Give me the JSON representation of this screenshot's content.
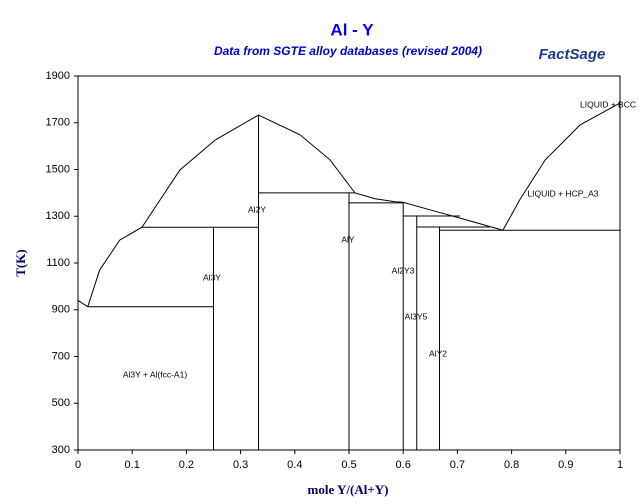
{
  "chart_data": {
    "type": "line",
    "title": "Al - Y",
    "subtitle": "Data from SGTE alloy databases (revised 2004)",
    "logo": "FactSage",
    "x_label": "mole Y/(Al+Y)",
    "y_label": "T(K)",
    "xlim": [
      0,
      1
    ],
    "ylim": [
      300,
      1900
    ],
    "xticks": [
      0,
      0.1,
      0.2,
      0.3,
      0.4,
      0.5,
      0.6,
      0.7,
      0.8,
      0.9,
      1
    ],
    "yticks": [
      300,
      500,
      700,
      900,
      1100,
      1300,
      1500,
      1700,
      1900
    ],
    "series": [
      {
        "color": "#000000",
        "x": [
          0,
          0.018
        ],
        "values": [
          940,
          913
        ]
      },
      {
        "color": "#000000",
        "x": [
          0.018,
          0.04,
          0.077,
          0.118,
          0.188,
          0.253,
          0.333,
          0.41,
          0.465,
          0.511,
          0.548,
          0.585,
          0.6,
          0.65,
          0.705,
          0.784
        ],
        "values": [
          913,
          1070,
          1198,
          1253,
          1498,
          1626,
          1733,
          1648,
          1541,
          1400,
          1375,
          1362,
          1360,
          1327,
          1292,
          1240
        ]
      },
      {
        "color": "#000000",
        "x": [
          0.784,
          0.815,
          0.862,
          0.926,
          1
        ],
        "values": [
          1240,
          1370,
          1541,
          1690,
          1784
        ]
      },
      {
        "color": "#000000",
        "x": [
          0.018,
          0.25
        ],
        "values": [
          913,
          913
        ]
      },
      {
        "color": "#000000",
        "x": [
          0.118,
          0.333
        ],
        "values": [
          1253,
          1253
        ]
      },
      {
        "color": "#000000",
        "x": [
          0.333,
          0.511
        ],
        "values": [
          1400,
          1400
        ]
      },
      {
        "color": "#000000",
        "x": [
          0.5,
          0.6
        ],
        "values": [
          1357,
          1357
        ]
      },
      {
        "color": "#000000",
        "x": [
          0.6,
          0.705
        ],
        "values": [
          1301,
          1301
        ]
      },
      {
        "color": "#000000",
        "x": [
          0.625,
          0.76
        ],
        "values": [
          1254,
          1254
        ]
      },
      {
        "color": "#000000",
        "x": [
          0.667,
          1
        ],
        "values": [
          1240,
          1240
        ]
      },
      {
        "color": "#000000",
        "x": [
          0.25,
          0.25
        ],
        "values": [
          300,
          1253
        ]
      },
      {
        "color": "#000000",
        "x": [
          0.333,
          0.333
        ],
        "values": [
          300,
          1733
        ]
      },
      {
        "color": "#000000",
        "x": [
          0.5,
          0.5
        ],
        "values": [
          300,
          1400
        ]
      },
      {
        "color": "#000000",
        "x": [
          0.6,
          0.6
        ],
        "values": [
          300,
          1357
        ]
      },
      {
        "color": "#000000",
        "x": [
          0.625,
          0.625
        ],
        "values": [
          300,
          1301
        ]
      },
      {
        "color": "#000000",
        "x": [
          0.667,
          0.667
        ],
        "values": [
          300,
          1254
        ]
      }
    ],
    "annotations": [
      "Al3Y + Al(fcc-A1)",
      "Al3Y",
      "Al2Y",
      "AlY",
      "Al2Y3",
      "Al3Y5",
      "AlY2",
      "LIQUID + HCP_A3",
      "LIQUID + BCC"
    ]
  }
}
